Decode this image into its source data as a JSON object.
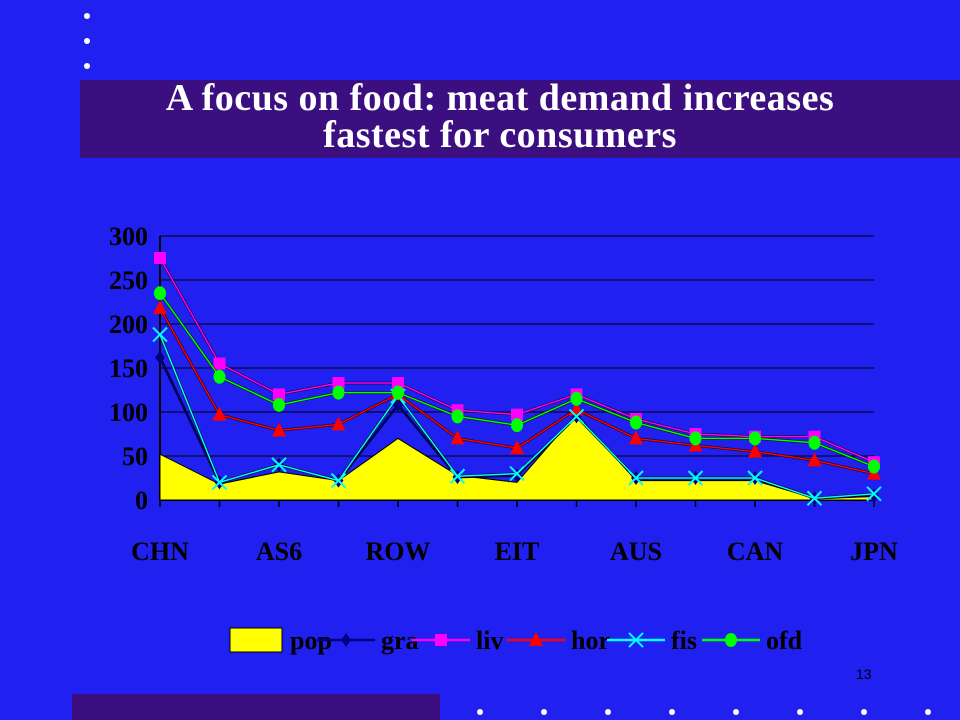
{
  "slide": {
    "title_line1": "A focus on food: meat demand increases",
    "title_line2": "fastest for consumers",
    "page_number": "13"
  },
  "colors": {
    "background": "#2020f0",
    "band": "#3b0f80",
    "plot_bg": "#2020f0"
  },
  "chart_data": {
    "type": "line",
    "x": [
      "CHN",
      "",
      "AS6",
      "",
      "ROW",
      "",
      "EIT",
      "",
      "AUS",
      "",
      "CAN",
      "",
      "JPN"
    ],
    "tick_labels": [
      "CHN",
      "AS6",
      "ROW",
      "EIT",
      "AUS",
      "CAN",
      "JPN"
    ],
    "ylim": [
      0,
      300
    ],
    "yticks": [
      0,
      50,
      100,
      150,
      200,
      250,
      300
    ],
    "grid": true,
    "legend_position": "bottom",
    "series": [
      {
        "name": "pop",
        "type": "area",
        "color": "#ffff00",
        "marker": "none",
        "values": [
          52,
          18,
          32,
          22,
          70,
          28,
          20,
          98,
          22,
          22,
          22,
          2,
          4
        ]
      },
      {
        "name": "gra",
        "color": "#000080",
        "marker": "diamond",
        "values": [
          162,
          20,
          40,
          22,
          108,
          26,
          28,
          95,
          25,
          25,
          25,
          2,
          5
        ]
      },
      {
        "name": "liv",
        "color": "#ff00ff",
        "marker": "square",
        "values": [
          275,
          155,
          120,
          133,
          133,
          102,
          97,
          120,
          92,
          75,
          72,
          72,
          43
        ]
      },
      {
        "name": "hor",
        "color": "#ff0000",
        "marker": "triangle",
        "values": [
          218,
          97,
          79,
          86,
          120,
          70,
          59,
          103,
          70,
          62,
          55,
          45,
          30
        ]
      },
      {
        "name": "fis",
        "color": "#00ffff",
        "marker": "x",
        "values": [
          188,
          20,
          40,
          22,
          118,
          27,
          30,
          95,
          25,
          25,
          25,
          2,
          7
        ]
      },
      {
        "name": "ofd",
        "color": "#00ff00",
        "marker": "circle",
        "values": [
          235,
          140,
          108,
          122,
          122,
          95,
          85,
          115,
          88,
          70,
          70,
          65,
          38
        ]
      }
    ]
  }
}
